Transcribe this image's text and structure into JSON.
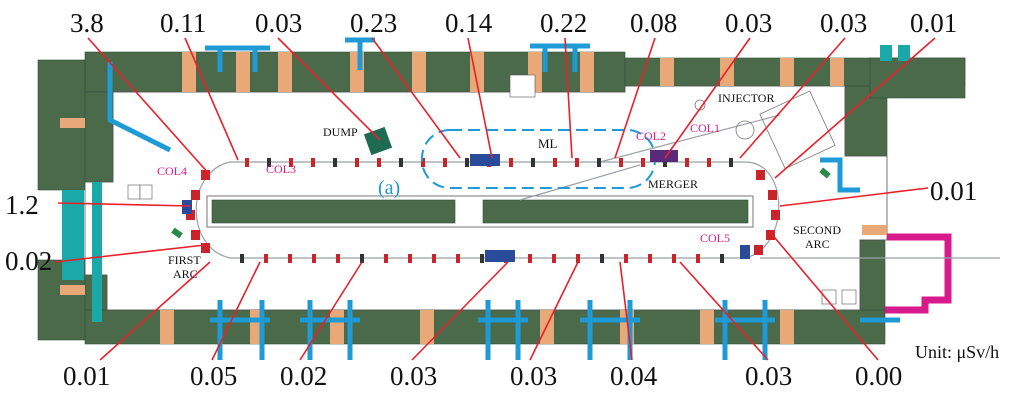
{
  "colors": {
    "shield": "#4a6a4a",
    "shield_edge": "#34503a",
    "block_tan": "#e8a877",
    "leader": "#e8202a",
    "magenta": "#d81b8c",
    "cyan": "#1e9ad6",
    "teal": "#1aa8a8",
    "magnet_red": "#c8242a"
  },
  "top_values": [
    {
      "label": "3.8"
    },
    {
      "label": "0.11"
    },
    {
      "label": "0.03"
    },
    {
      "label": "0.23"
    },
    {
      "label": "0.14"
    },
    {
      "label": "0.22"
    },
    {
      "label": "0.08"
    },
    {
      "label": "0.03"
    },
    {
      "label": "0.03"
    },
    {
      "label": "0.01"
    }
  ],
  "left_values": [
    {
      "label": "1.2"
    },
    {
      "label": "0.02"
    }
  ],
  "right_values": [
    {
      "label": "0.01"
    }
  ],
  "bottom_values": [
    {
      "label": "0.01"
    },
    {
      "label": "0.05"
    },
    {
      "label": "0.02"
    },
    {
      "label": "0.03"
    },
    {
      "label": "0.03"
    },
    {
      "label": "0.04"
    },
    {
      "label": "0.03"
    },
    {
      "label": "0.00"
    }
  ],
  "components": {
    "dump": "DUMP",
    "ml": "ML",
    "injector": "INJECTOR",
    "merger": "MERGER",
    "first_arc_line1": "FIRST",
    "first_arc_line2": "ARC",
    "second_arc_line1": "SECOND",
    "second_arc_line2": "ARC",
    "region_a": "(a)"
  },
  "collimators": {
    "col1": "COL1",
    "col2": "COL2",
    "col3": "COL3",
    "col4": "COL4",
    "col5": "COL5"
  },
  "unit_label": "Unit: μSv/h"
}
